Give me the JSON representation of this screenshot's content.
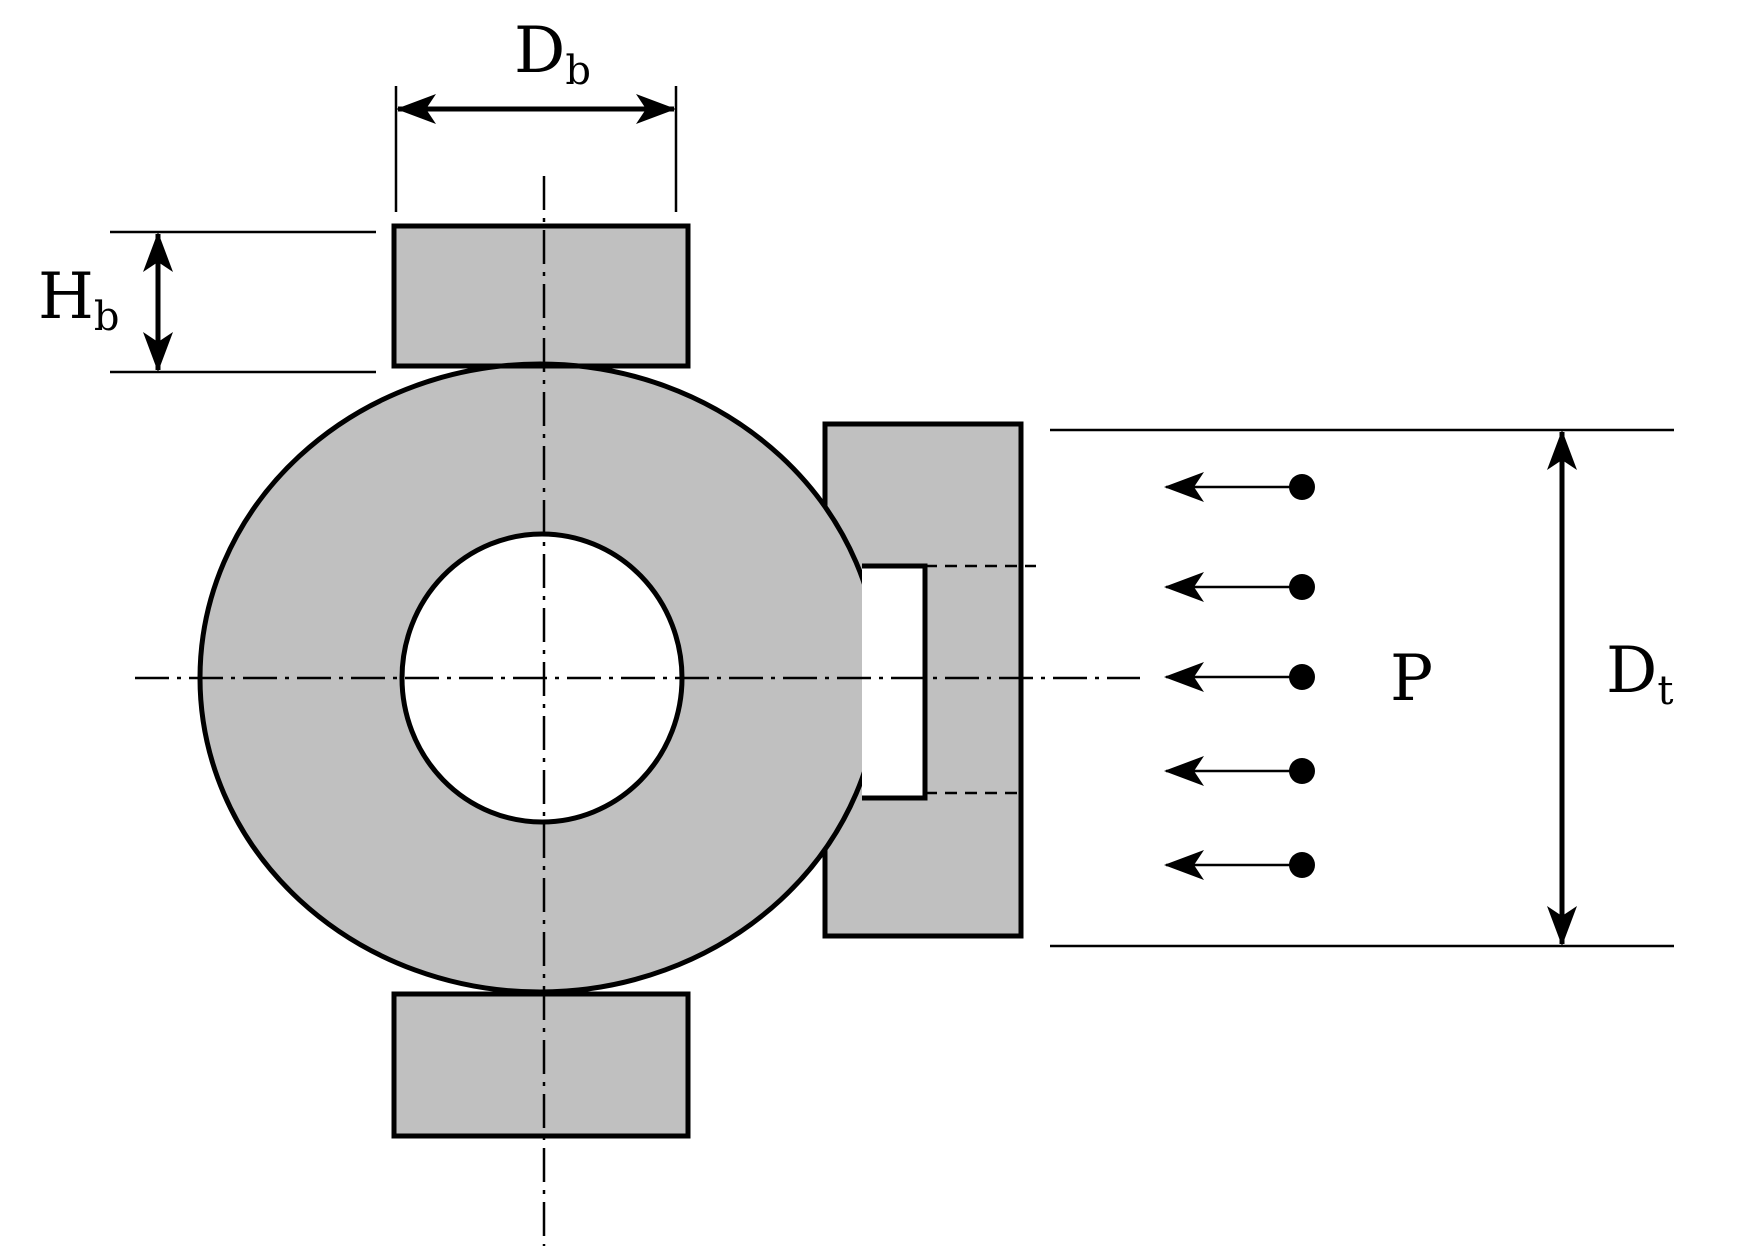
{
  "labels": {
    "Db": {
      "main": "D",
      "sub": "b"
    },
    "Hb": {
      "main": "H",
      "sub": "b"
    },
    "Dt": {
      "main": "D",
      "sub": "t"
    },
    "P": "P"
  },
  "colors": {
    "fill": "#c0c0c0",
    "stroke": "#000000",
    "background": "#ffffff"
  }
}
